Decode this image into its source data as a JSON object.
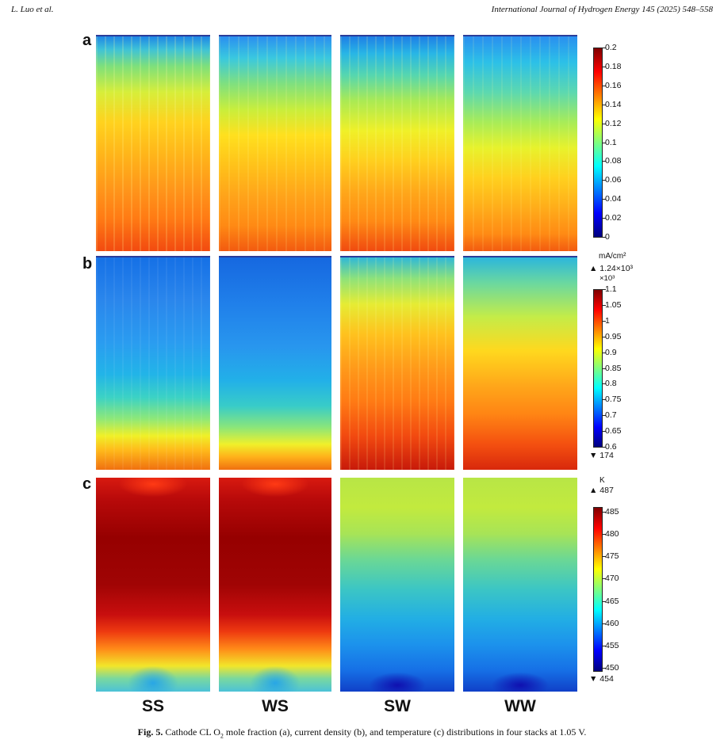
{
  "header": {
    "left": "L. Luo et al.",
    "right": "International Journal of Hydrogen Energy 145 (2025) 548–558"
  },
  "rows": [
    {
      "label": "a"
    },
    {
      "label": "b"
    },
    {
      "label": "c"
    }
  ],
  "columns": [
    {
      "label": "SS"
    },
    {
      "label": "WS"
    },
    {
      "label": "SW"
    },
    {
      "label": "WW"
    }
  ],
  "colorbars": {
    "a": {
      "ticks": [
        "0.2",
        "0.18",
        "0.16",
        "0.14",
        "0.12",
        "0.1",
        "0.08",
        "0.06",
        "0.04",
        "0.02",
        "0"
      ]
    },
    "b": {
      "unit": "mA/cm²",
      "max_marker": "▲ 1.24×10³",
      "multiplier": "×10³",
      "ticks": [
        "1.1",
        "1.05",
        "1",
        "0.95",
        "0.9",
        "0.85",
        "0.8",
        "0.75",
        "0.7",
        "0.65",
        "0.6"
      ],
      "min_marker": "▼ 174"
    },
    "c": {
      "unit": "K",
      "max_marker": "▲ 487",
      "ticks": [
        "485",
        "480",
        "475",
        "470",
        "465",
        "460",
        "455",
        "450"
      ],
      "min_marker": "▼ 454"
    }
  },
  "caption": {
    "label": "Fig. 5.",
    "text_before": "Cathode CL O",
    "sub": "2",
    "text_after": " mole fraction (a), current density (b), and temperature (c) distributions in four stacks at 1.05 V."
  },
  "colors": {
    "jet": [
      "#00007f",
      "#0000ff",
      "#007fff",
      "#00ffff",
      "#7fff7f",
      "#ffff00",
      "#ff7f00",
      "#ff0000",
      "#7f0000"
    ]
  }
}
